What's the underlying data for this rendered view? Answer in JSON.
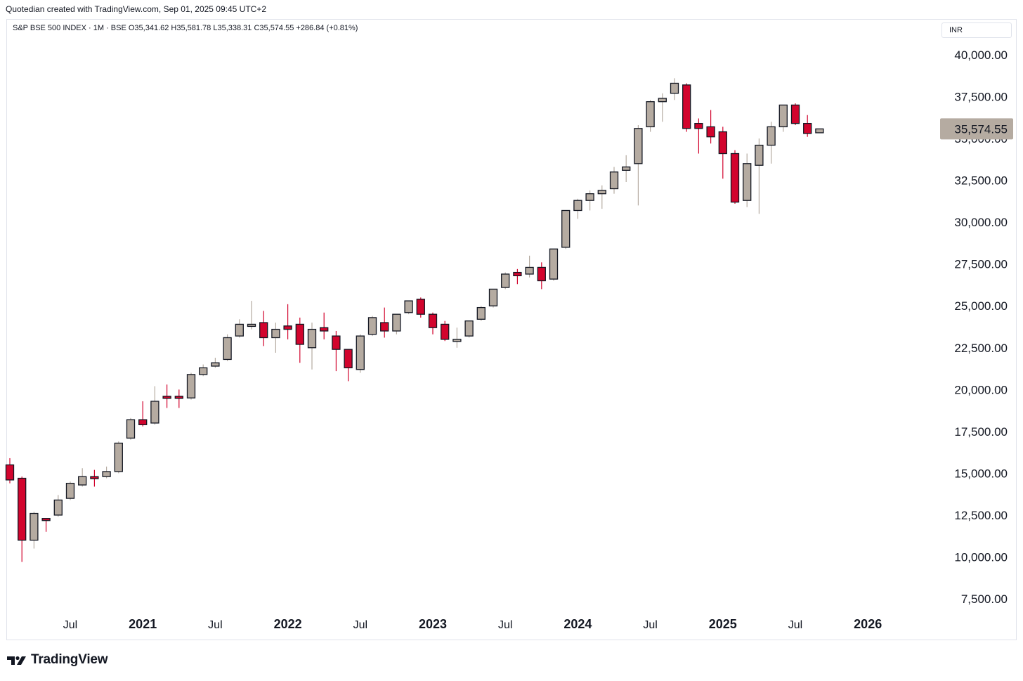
{
  "header": {
    "caption": "Quotedian created with TradingView.com, Sep 01, 2025 09:45 UTC+2"
  },
  "legend": {
    "text": "S&P BSE 500 INDEX · 1M · BSE  O35,341.62  H35,581.78  L35,338.31  C35,574.55  +286.84 (+0.81%)"
  },
  "currency": "INR",
  "footer": {
    "brand": "TradingView"
  },
  "colors": {
    "up": "#b5aba1",
    "down": "#d2042d",
    "border": "#131722",
    "last_price_bg": "#b5aba1"
  },
  "chart_data": {
    "type": "candlestick",
    "interval": "1M",
    "start": "2020-02",
    "ylim": [
      6500,
      41500
    ],
    "y_ticks": [
      "40,000.00",
      "37,500.00",
      "35,000.00",
      "32,500.00",
      "30,000.00",
      "27,500.00",
      "25,000.00",
      "22,500.00",
      "20,000.00",
      "17,500.00",
      "15,000.00",
      "12,500.00",
      "10,000.00",
      "7,500.00"
    ],
    "y_tick_values": [
      40000,
      37500,
      35000,
      32500,
      30000,
      27500,
      25000,
      22500,
      20000,
      17500,
      15000,
      12500,
      10000,
      7500
    ],
    "x_ticks": [
      {
        "label": "Jul",
        "month": "2020-07",
        "bold": false
      },
      {
        "label": "2021",
        "month": "2021-01",
        "bold": true
      },
      {
        "label": "Jul",
        "month": "2021-07",
        "bold": false
      },
      {
        "label": "2022",
        "month": "2022-01",
        "bold": true
      },
      {
        "label": "Jul",
        "month": "2022-07",
        "bold": false
      },
      {
        "label": "2023",
        "month": "2023-01",
        "bold": true
      },
      {
        "label": "Jul",
        "month": "2023-07",
        "bold": false
      },
      {
        "label": "2024",
        "month": "2024-01",
        "bold": true
      },
      {
        "label": "Jul",
        "month": "2024-07",
        "bold": false
      },
      {
        "label": "2025",
        "month": "2025-01",
        "bold": true
      },
      {
        "label": "Jul",
        "month": "2025-07",
        "bold": false
      },
      {
        "label": "2026",
        "month": "2026-01",
        "bold": true
      }
    ],
    "last_price": "35,574.55",
    "last_price_value": 35574.55,
    "candles": [
      {
        "month": "2020-02",
        "o": 15500,
        "h": 15900,
        "l": 14400,
        "c": 14600
      },
      {
        "month": "2020-03",
        "o": 14700,
        "h": 14800,
        "l": 9700,
        "c": 11000
      },
      {
        "month": "2020-04",
        "o": 11000,
        "h": 12700,
        "l": 10500,
        "c": 12600
      },
      {
        "month": "2020-05",
        "o": 12300,
        "h": 12300,
        "l": 11500,
        "c": 12200
      },
      {
        "month": "2020-06",
        "o": 12500,
        "h": 13700,
        "l": 12400,
        "c": 13400
      },
      {
        "month": "2020-07",
        "o": 13500,
        "h": 14500,
        "l": 13400,
        "c": 14400
      },
      {
        "month": "2020-08",
        "o": 14300,
        "h": 15300,
        "l": 14200,
        "c": 14800
      },
      {
        "month": "2020-09",
        "o": 14800,
        "h": 15200,
        "l": 14200,
        "c": 14700
      },
      {
        "month": "2020-10",
        "o": 14800,
        "h": 15400,
        "l": 14700,
        "c": 15100
      },
      {
        "month": "2020-11",
        "o": 15100,
        "h": 16900,
        "l": 15000,
        "c": 16800
      },
      {
        "month": "2020-12",
        "o": 17100,
        "h": 18300,
        "l": 17000,
        "c": 18200
      },
      {
        "month": "2021-01",
        "o": 18200,
        "h": 19300,
        "l": 17800,
        "c": 17900
      },
      {
        "month": "2021-02",
        "o": 18000,
        "h": 20200,
        "l": 17900,
        "c": 19300
      },
      {
        "month": "2021-03",
        "o": 19600,
        "h": 20300,
        "l": 18900,
        "c": 19500
      },
      {
        "month": "2021-04",
        "o": 19600,
        "h": 20000,
        "l": 18900,
        "c": 19500
      },
      {
        "month": "2021-05",
        "o": 19500,
        "h": 21000,
        "l": 19400,
        "c": 20900
      },
      {
        "month": "2021-06",
        "o": 20900,
        "h": 21500,
        "l": 20800,
        "c": 21300
      },
      {
        "month": "2021-07",
        "o": 21400,
        "h": 21900,
        "l": 21300,
        "c": 21600
      },
      {
        "month": "2021-08",
        "o": 21800,
        "h": 23300,
        "l": 21700,
        "c": 23100
      },
      {
        "month": "2021-09",
        "o": 23200,
        "h": 24200,
        "l": 23100,
        "c": 23900
      },
      {
        "month": "2021-10",
        "o": 23800,
        "h": 25300,
        "l": 23600,
        "c": 23900
      },
      {
        "month": "2021-11",
        "o": 24000,
        "h": 24700,
        "l": 22600,
        "c": 23100
      },
      {
        "month": "2021-12",
        "o": 23100,
        "h": 24000,
        "l": 22200,
        "c": 23600
      },
      {
        "month": "2022-01",
        "o": 23800,
        "h": 25100,
        "l": 23000,
        "c": 23600
      },
      {
        "month": "2022-02",
        "o": 23900,
        "h": 24300,
        "l": 21600,
        "c": 22700
      },
      {
        "month": "2022-03",
        "o": 22500,
        "h": 24000,
        "l": 21200,
        "c": 23600
      },
      {
        "month": "2022-04",
        "o": 23700,
        "h": 24600,
        "l": 23000,
        "c": 23500
      },
      {
        "month": "2022-05",
        "o": 23200,
        "h": 23500,
        "l": 21100,
        "c": 22400
      },
      {
        "month": "2022-06",
        "o": 22400,
        "h": 22400,
        "l": 20500,
        "c": 21300
      },
      {
        "month": "2022-07",
        "o": 21200,
        "h": 23300,
        "l": 21000,
        "c": 23200
      },
      {
        "month": "2022-08",
        "o": 23300,
        "h": 24400,
        "l": 23200,
        "c": 24300
      },
      {
        "month": "2022-09",
        "o": 24000,
        "h": 24900,
        "l": 23100,
        "c": 23500
      },
      {
        "month": "2022-10",
        "o": 23500,
        "h": 24500,
        "l": 23300,
        "c": 24500
      },
      {
        "month": "2022-11",
        "o": 24600,
        "h": 25300,
        "l": 24500,
        "c": 25300
      },
      {
        "month": "2022-12",
        "o": 25400,
        "h": 25500,
        "l": 24300,
        "c": 24500
      },
      {
        "month": "2023-01",
        "o": 24500,
        "h": 24600,
        "l": 23300,
        "c": 23700
      },
      {
        "month": "2023-02",
        "o": 23900,
        "h": 24100,
        "l": 22900,
        "c": 23000
      },
      {
        "month": "2023-03",
        "o": 23000,
        "h": 23700,
        "l": 22500,
        "c": 23000
      },
      {
        "month": "2023-04",
        "o": 23200,
        "h": 24100,
        "l": 23100,
        "c": 24100
      },
      {
        "month": "2023-05",
        "o": 24200,
        "h": 25000,
        "l": 24100,
        "c": 24900
      },
      {
        "month": "2023-06",
        "o": 25000,
        "h": 26000,
        "l": 24900,
        "c": 26000
      },
      {
        "month": "2023-07",
        "o": 26100,
        "h": 27000,
        "l": 26000,
        "c": 26900
      },
      {
        "month": "2023-08",
        "o": 27000,
        "h": 27200,
        "l": 26300,
        "c": 26800
      },
      {
        "month": "2023-09",
        "o": 26900,
        "h": 28000,
        "l": 26700,
        "c": 27300
      },
      {
        "month": "2023-10",
        "o": 27300,
        "h": 27600,
        "l": 26000,
        "c": 26500
      },
      {
        "month": "2023-11",
        "o": 26600,
        "h": 28400,
        "l": 26500,
        "c": 28400
      },
      {
        "month": "2023-12",
        "o": 28500,
        "h": 30700,
        "l": 28400,
        "c": 30700
      },
      {
        "month": "2024-01",
        "o": 30700,
        "h": 31400,
        "l": 30200,
        "c": 31300
      },
      {
        "month": "2024-02",
        "o": 31300,
        "h": 31900,
        "l": 30700,
        "c": 31700
      },
      {
        "month": "2024-03",
        "o": 31700,
        "h": 32200,
        "l": 30800,
        "c": 31900
      },
      {
        "month": "2024-04",
        "o": 32000,
        "h": 33300,
        "l": 31700,
        "c": 33000
      },
      {
        "month": "2024-05",
        "o": 33100,
        "h": 34000,
        "l": 32400,
        "c": 33300
      },
      {
        "month": "2024-06",
        "o": 33500,
        "h": 35800,
        "l": 31000,
        "c": 35600
      },
      {
        "month": "2024-07",
        "o": 35700,
        "h": 37300,
        "l": 35400,
        "c": 37200
      },
      {
        "month": "2024-08",
        "o": 37200,
        "h": 37700,
        "l": 36000,
        "c": 37400
      },
      {
        "month": "2024-09",
        "o": 37700,
        "h": 38600,
        "l": 37300,
        "c": 38300
      },
      {
        "month": "2024-10",
        "o": 38200,
        "h": 38300,
        "l": 35400,
        "c": 35600
      },
      {
        "month": "2024-11",
        "o": 35900,
        "h": 36200,
        "l": 34100,
        "c": 35600
      },
      {
        "month": "2024-12",
        "o": 35700,
        "h": 36700,
        "l": 34700,
        "c": 35100
      },
      {
        "month": "2025-01",
        "o": 35400,
        "h": 35700,
        "l": 32600,
        "c": 34100
      },
      {
        "month": "2025-02",
        "o": 34100,
        "h": 34300,
        "l": 31100,
        "c": 31200
      },
      {
        "month": "2025-03",
        "o": 31300,
        "h": 34100,
        "l": 30900,
        "c": 33500
      },
      {
        "month": "2025-04",
        "o": 33400,
        "h": 35000,
        "l": 30500,
        "c": 34600
      },
      {
        "month": "2025-05",
        "o": 34600,
        "h": 36000,
        "l": 33500,
        "c": 35700
      },
      {
        "month": "2025-06",
        "o": 35700,
        "h": 37000,
        "l": 35400,
        "c": 37000
      },
      {
        "month": "2025-07",
        "o": 37000,
        "h": 37100,
        "l": 35800,
        "c": 35900
      },
      {
        "month": "2025-08",
        "o": 35900,
        "h": 36400,
        "l": 35100,
        "c": 35300
      },
      {
        "month": "2025-09",
        "o": 35341.62,
        "h": 35581.78,
        "l": 35338.31,
        "c": 35574.55
      }
    ]
  }
}
